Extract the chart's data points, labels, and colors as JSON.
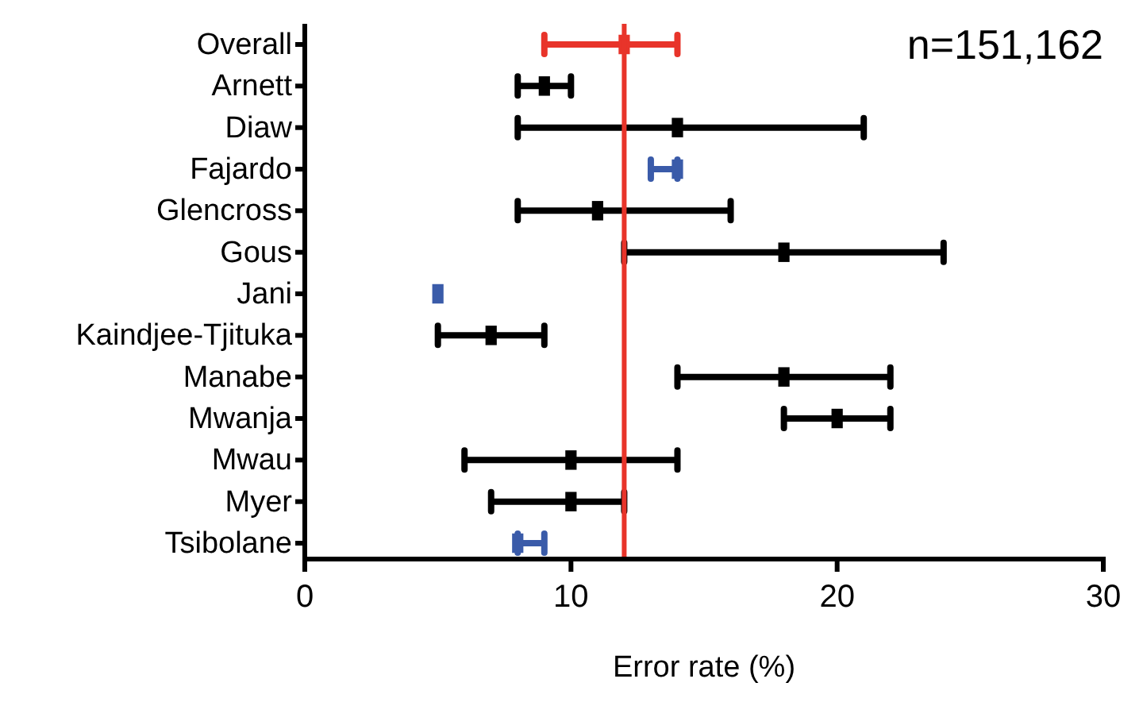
{
  "chart_data": {
    "type": "scatter",
    "orientation": "horizontal",
    "xlabel": "Error rate (%)",
    "categories": [
      "Overall",
      "Arnett",
      "Diaw",
      "Fajardo",
      "Glencross",
      "Gous",
      "Jani",
      "Kaindjee-Tjituka",
      "Manabe",
      "Mwanja",
      "Mwau",
      "Myer",
      "Tsibolane"
    ],
    "values": [
      12,
      9,
      14,
      14,
      11,
      18,
      5,
      7,
      18,
      20,
      10,
      10,
      8
    ],
    "errors": [
      [
        9,
        14
      ],
      [
        8,
        10
      ],
      [
        8,
        21
      ],
      [
        13,
        14
      ],
      [
        8,
        16
      ],
      [
        12,
        24
      ],
      null,
      [
        5,
        9
      ],
      [
        14,
        22
      ],
      [
        18,
        22
      ],
      [
        6,
        14
      ],
      [
        7,
        12
      ],
      [
        8,
        9
      ]
    ],
    "colors": [
      "#e8342a",
      "#000000",
      "#000000",
      "#3a5ba9",
      "#000000",
      "#000000",
      "#3a5ba9",
      "#000000",
      "#000000",
      "#000000",
      "#000000",
      "#000000",
      "#3a5ba9"
    ],
    "marker": "square",
    "xlim": [
      0,
      30
    ],
    "xticks": [
      0,
      10,
      20,
      30
    ],
    "ref_lines": [
      {
        "axis": "x",
        "value": 12,
        "color": "#e8342a"
      }
    ],
    "annotations": [
      "n=151,162"
    ]
  }
}
